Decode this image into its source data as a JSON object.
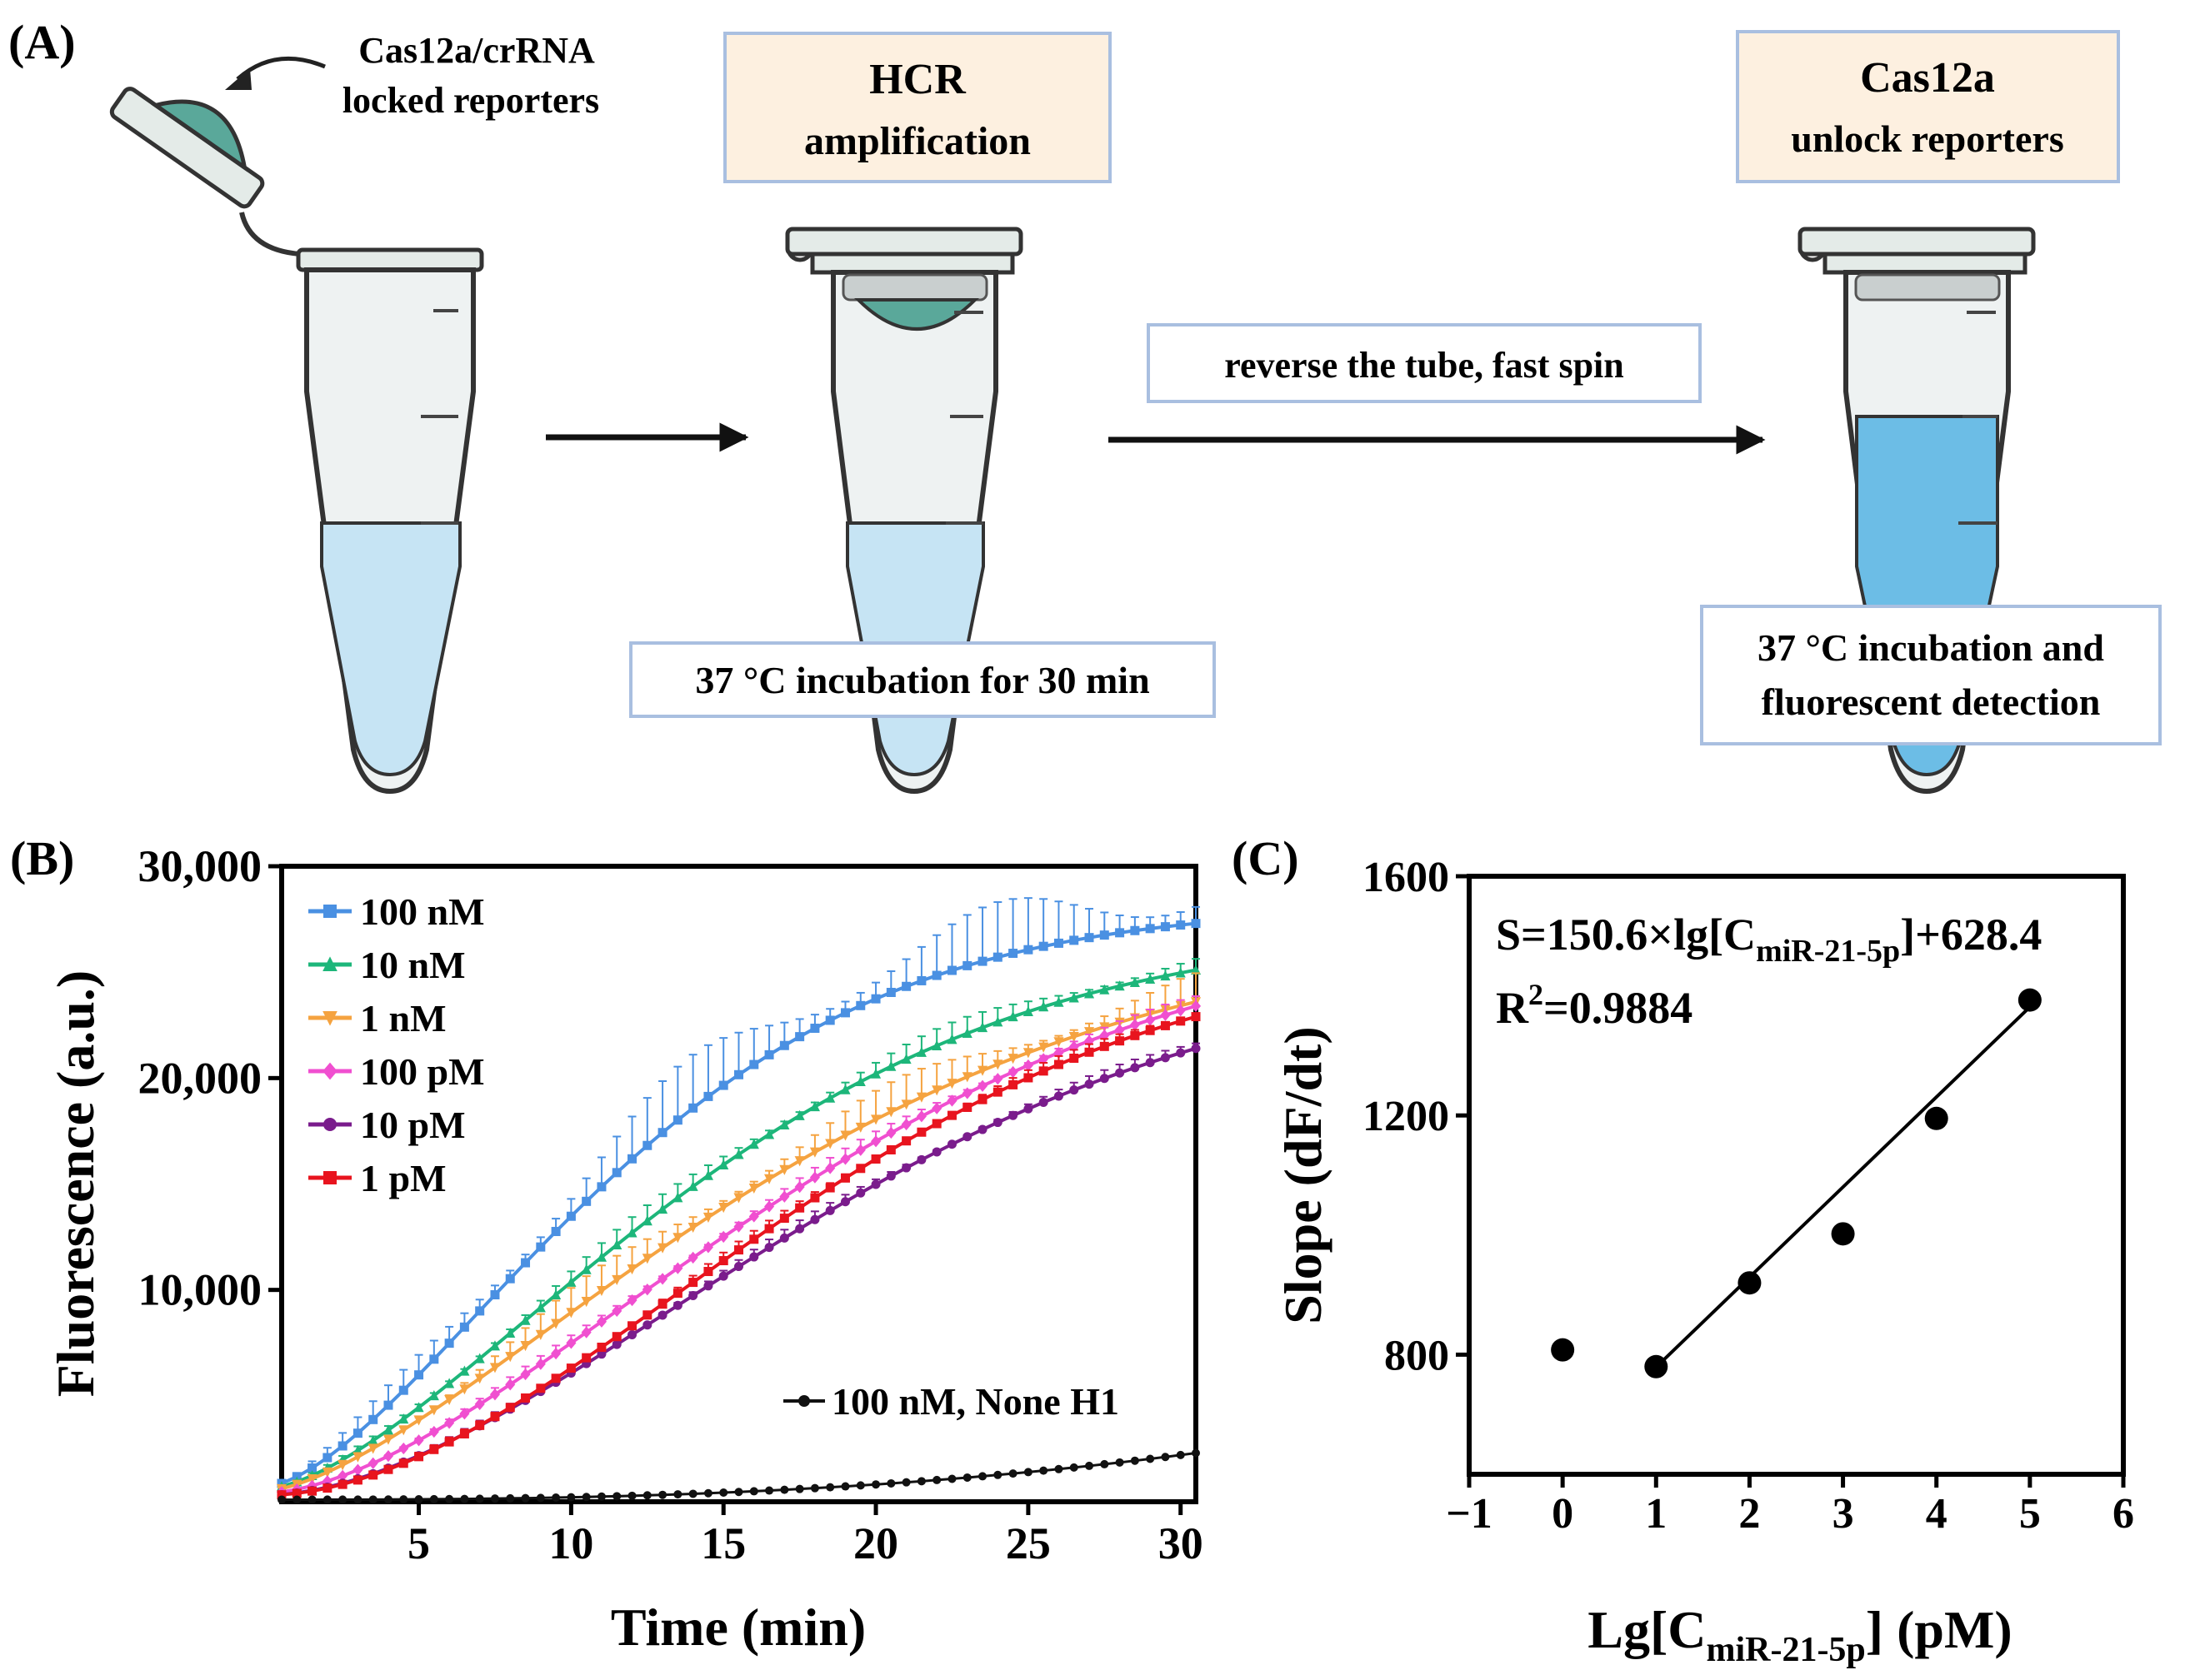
{
  "panel_a": {
    "label": "(A)",
    "lid_annotation": [
      "Cas12a/crRNA",
      "locked reporters"
    ],
    "step2_title": [
      "HCR",
      "amplification"
    ],
    "step2_caption": "37 °C incubation for 30 min",
    "transfer_label": "reverse the tube, fast spin",
    "step3_title": [
      "Cas12a",
      "unlock reporters"
    ],
    "step3_caption": [
      "37 °C incubation and",
      "fluorescent detection"
    ],
    "colors": {
      "liquid": "#c6e4f4",
      "liquid_dark": "#5fb6e0",
      "reagent": "#5aa89a",
      "box_fill": "#fdf0e0",
      "box_border": "#a9bfe0"
    }
  },
  "chart_data": [
    {
      "panel": "(B)",
      "type": "line",
      "xlabel": "Time (min)",
      "ylabel": "Fluorescence (a.u.)",
      "xlim": [
        0.5,
        30.5
      ],
      "ylim": [
        0,
        30000
      ],
      "xticks": [
        5,
        10,
        15,
        20,
        25,
        30
      ],
      "yticks": [
        10000,
        20000,
        30000
      ],
      "ytick_labels": [
        "10,000",
        "20,000",
        "30,000"
      ],
      "series": [
        {
          "name": "100 nM",
          "color": "#4a90e2",
          "marker": "square",
          "start": 700,
          "end": 27300,
          "shape": "fast",
          "err": 2600
        },
        {
          "name": "10 nM",
          "color": "#1db67a",
          "marker": "triangle",
          "start": 600,
          "end": 25100,
          "shape": "mid",
          "err": 800
        },
        {
          "name": "1 nM",
          "color": "#f5a340",
          "marker": "triangle-down",
          "start": 500,
          "end": 23600,
          "shape": "midslow",
          "err": 1400
        },
        {
          "name": "100 pM",
          "color": "#f04fd0",
          "marker": "diamond",
          "start": 400,
          "end": 23400,
          "shape": "slow",
          "err": 500
        },
        {
          "name": "10 pM",
          "color": "#7a1c8c",
          "marker": "circle",
          "start": 300,
          "end": 21400,
          "shape": "slowest",
          "err": 400
        },
        {
          "name": "1 pM",
          "color": "#e8141e",
          "marker": "square",
          "start": 300,
          "end": 22900,
          "shape": "slowest2",
          "err": 400
        }
      ],
      "control": {
        "name": "100 nM, None H1",
        "color": "#111111",
        "start": 100,
        "end": 2300
      }
    },
    {
      "panel": "(C)",
      "type": "scatter",
      "xlabel_main": "Lg[C",
      "xlabel_sub": "miR-21-5p",
      "xlabel_tail": "] (pM)",
      "ylabel": "Slope (dF/dt)",
      "xlim": [
        -1,
        6
      ],
      "ylim": [
        600,
        1600
      ],
      "xticks": [
        -1,
        0,
        1,
        2,
        3,
        4,
        5,
        6
      ],
      "xtick_labels": [
        "−1",
        "0",
        "1",
        "2",
        "3",
        "4",
        "5",
        "6"
      ],
      "yticks": [
        800,
        1200,
        1600
      ],
      "points": [
        {
          "x": 0,
          "y": 808
        },
        {
          "x": 1,
          "y": 780
        },
        {
          "x": 2,
          "y": 920
        },
        {
          "x": 3,
          "y": 1002
        },
        {
          "x": 4,
          "y": 1195
        },
        {
          "x": 5,
          "y": 1393
        }
      ],
      "fit": {
        "x0": 1,
        "x1": 5,
        "slope": 150.6,
        "intercept": 628.4
      },
      "equation_main": "S=150.6×lg[C",
      "equation_sub": "miR-21-5p",
      "equation_tail": "]+628.4",
      "r2_label": "R",
      "r2_sup": "2",
      "r2_value": "=0.9884"
    }
  ]
}
